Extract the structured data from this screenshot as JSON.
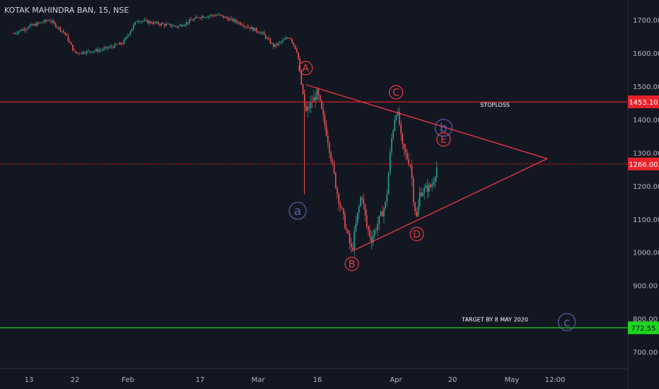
{
  "symbol_title": "KOTAK MAHINDRA BAN, 15, NSE",
  "colors": {
    "background": "#131722",
    "grid_text": "#b2b5be",
    "up_candle": "#26a69a",
    "down_candle": "#ef5350",
    "annotation_red": "#f23645",
    "wave_blue": "#5d5fa8",
    "target_green": "#1fd41f",
    "stoploss_red": "#e8222a"
  },
  "chart_data": {
    "type": "candlestick",
    "title": "KOTAK MAHINDRA BAN, 15, NSE",
    "y_axis": {
      "ticks": [
        "1700.00",
        "1600.00",
        "1500.00",
        "1400.00",
        "1300.00",
        "1200.00",
        "1100.00",
        "1000.00",
        "900.00",
        "800.00",
        "700.00"
      ],
      "range": [
        650,
        1760
      ]
    },
    "x_axis": {
      "ticks": [
        "13",
        "22",
        "Feb",
        "17",
        "Mar",
        "16",
        "Apr",
        "20",
        "May",
        "12:00"
      ]
    },
    "price_path": [
      {
        "t": "Jan 10",
        "v": 1660
      },
      {
        "t": "Jan 13",
        "v": 1680
      },
      {
        "t": "Jan 17",
        "v": 1700
      },
      {
        "t": "Jan 20",
        "v": 1660
      },
      {
        "t": "Jan 22",
        "v": 1600
      },
      {
        "t": "Jan 27",
        "v": 1610
      },
      {
        "t": "Jan 31",
        "v": 1630
      },
      {
        "t": "Feb 3",
        "v": 1700
      },
      {
        "t": "Feb 7",
        "v": 1690
      },
      {
        "t": "Feb 12",
        "v": 1680
      },
      {
        "t": "Feb 17",
        "v": 1710
      },
      {
        "t": "Feb 21",
        "v": 1715
      },
      {
        "t": "Feb 26",
        "v": 1690
      },
      {
        "t": "Mar 2",
        "v": 1660
      },
      {
        "t": "Mar 5",
        "v": 1620
      },
      {
        "t": "Mar 9",
        "v": 1650
      },
      {
        "t": "Mar 11",
        "v": 1600
      },
      {
        "t": "Mar 12",
        "v": 1500
      },
      {
        "t": "Mar 13",
        "v": 1420
      },
      {
        "t": "Mar 16",
        "v": 1480
      },
      {
        "t": "Mar 18",
        "v": 1350
      },
      {
        "t": "Mar 20",
        "v": 1180
      },
      {
        "t": "Mar 23",
        "v": 1000
      },
      {
        "t": "Mar 24",
        "v": 1100
      },
      {
        "t": "Mar 25",
        "v": 1180
      },
      {
        "t": "Mar 26",
        "v": 1080
      },
      {
        "t": "Mar 27",
        "v": 1040
      },
      {
        "t": "Mar 30",
        "v": 1150
      },
      {
        "t": "Mar 31",
        "v": 1330
      },
      {
        "t": "Apr 1",
        "v": 1430
      },
      {
        "t": "Apr 2",
        "v": 1400
      },
      {
        "t": "Apr 3",
        "v": 1320
      },
      {
        "t": "Apr 6",
        "v": 1260
      },
      {
        "t": "Apr 7",
        "v": 1150
      },
      {
        "t": "Apr 8",
        "v": 1100
      },
      {
        "t": "Apr 9",
        "v": 1180
      },
      {
        "t": "Apr 13",
        "v": 1200
      },
      {
        "t": "Apr 15",
        "v": 1266
      }
    ],
    "horizontal_lines": [
      {
        "label": "STOPLOSS",
        "value": 1453.1,
        "price_label": "1453.10",
        "style": "solid",
        "color": "#e8222a"
      },
      {
        "label": "",
        "value": 1266.0,
        "price_label": "1266.00",
        "style": "dotted",
        "color": "#e8222a"
      },
      {
        "label": "TARGET BY 8 MAY 2020",
        "value": 772.55,
        "price_label": "772.55",
        "style": "solid",
        "color": "#1fd41f"
      }
    ],
    "triangle": {
      "upper_line": {
        "from": {
          "t": "Mar 13",
          "v": 1505
        },
        "to": {
          "t": "May 10",
          "v": 1282
        }
      },
      "lower_line": {
        "from": {
          "t": "Mar 23",
          "v": 1003
        },
        "to": {
          "t": "May 10",
          "v": 1282
        }
      }
    },
    "wave_labels": [
      {
        "text": "A",
        "t": "Mar 13",
        "v": 1555,
        "color": "red"
      },
      {
        "text": "B",
        "t": "Mar 23",
        "v": 965,
        "color": "red"
      },
      {
        "text": "C",
        "t": "Apr 1",
        "v": 1482,
        "color": "red"
      },
      {
        "text": "D",
        "t": "Apr 8",
        "v": 1055,
        "color": "red"
      },
      {
        "text": "E",
        "t": "Apr 17",
        "v": 1340,
        "color": "red"
      },
      {
        "text": "a",
        "t": "Mar 11",
        "v": 1125,
        "color": "blue"
      },
      {
        "text": "b",
        "t": "Apr 17",
        "v": 1375,
        "color": "blue"
      },
      {
        "text": "c",
        "t": "May 15",
        "v": 790,
        "color": "blue"
      }
    ]
  }
}
